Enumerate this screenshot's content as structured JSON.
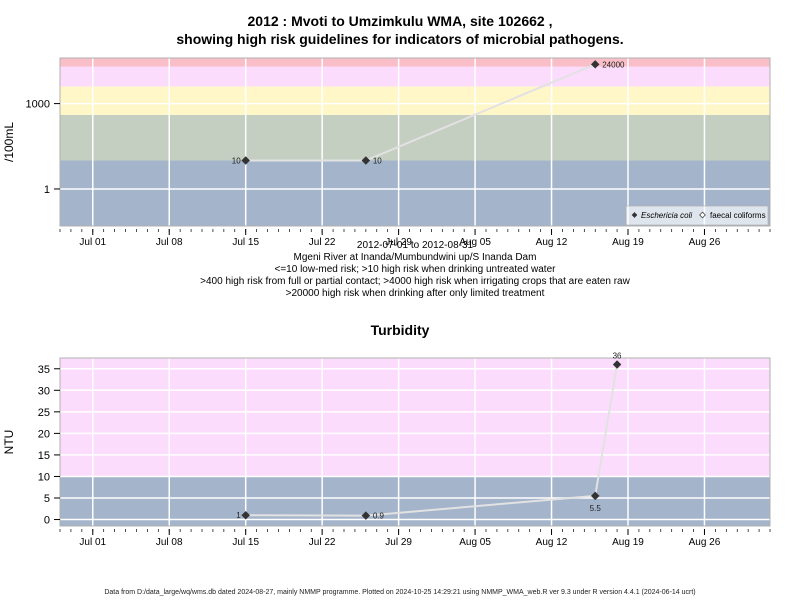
{
  "title_line1": "2012 : Mvoti to Umzimkulu WMA, site 102662 ,",
  "title_line2": "showing high risk guidelines for indicators of microbial pathogens.",
  "info_lines": [
    "2012-07-01 to 2012-08-31",
    "Mgeni River at Inanda/Mumbundwini up/S Inanda Dam",
    "<=10 low-med risk; >10 high risk when drinking untreated water",
    ">400 high risk from full or partial contact; >4000 high risk when irrigating crops that are eaten raw",
    ">20000 high risk when drinking after only limited treatment"
  ],
  "footer": "Data from D:/data_large/wq/wms.db dated 2024-08-27, mainly NMMP programme. Plotted on 2024-10-25 14:29:21 using NMMP_WMA_web.R ver 9.3 under R version 4.4.1 (2024-06-14 ucrt)",
  "chart_data": [
    {
      "type": "scatter",
      "title": "",
      "ylabel": "/100mL",
      "xlabel": "",
      "y_scale": "log",
      "x_ticks": [
        "Jul 01",
        "Jul 08",
        "Jul 15",
        "Jul 22",
        "Jul 29",
        "Aug 05",
        "Aug 12",
        "Aug 19",
        "Aug 26"
      ],
      "y_ticks": [
        "1",
        "1000"
      ],
      "bands": [
        {
          "from": 0.05,
          "to": 10,
          "color": "#a3b4cb"
        },
        {
          "from": 10,
          "to": 400,
          "color": "#c4cec1"
        },
        {
          "from": 400,
          "to": 4000,
          "color": "#fff7c8"
        },
        {
          "from": 4000,
          "to": 20000,
          "color": "#fcdcfc"
        },
        {
          "from": 20000,
          "to": 40000,
          "color": "#f9bec8"
        }
      ],
      "legend": {
        "placement": "bottom-right",
        "entries": [
          "Eschericia coli",
          "faecal coliforms"
        ]
      },
      "series": [
        {
          "name": "Eschericia coli",
          "points": [
            {
              "x": "2012-07-15",
              "y": 10,
              "label": "10"
            },
            {
              "x": "2012-07-26",
              "y": 10,
              "label": "10"
            },
            {
              "x": "2012-08-16",
              "y": 24000,
              "label": "24000"
            }
          ]
        }
      ]
    },
    {
      "type": "scatter",
      "title": "Turbidity",
      "ylabel": "NTU",
      "xlabel": "",
      "ylim": [
        -1.5,
        37.5
      ],
      "x_ticks": [
        "Jul 01",
        "Jul 08",
        "Jul 15",
        "Jul 22",
        "Jul 29",
        "Aug 05",
        "Aug 12",
        "Aug 19",
        "Aug 26"
      ],
      "y_ticks": [
        0,
        5,
        10,
        15,
        20,
        25,
        30,
        35
      ],
      "bands": [
        {
          "from": -1.5,
          "to": 10,
          "color": "#a3b4cb"
        },
        {
          "from": 10,
          "to": 37.5,
          "color": "#fcdcfc"
        }
      ],
      "series": [
        {
          "name": "",
          "points": [
            {
              "x": "2012-07-15",
              "y": 1,
              "label": "1"
            },
            {
              "x": "2012-07-26",
              "y": 0.9,
              "label": "0.9"
            },
            {
              "x": "2012-08-16",
              "y": 5.5,
              "label": "5.5"
            },
            {
              "x": "2012-08-18",
              "y": 36,
              "label": "36"
            }
          ]
        }
      ]
    }
  ]
}
